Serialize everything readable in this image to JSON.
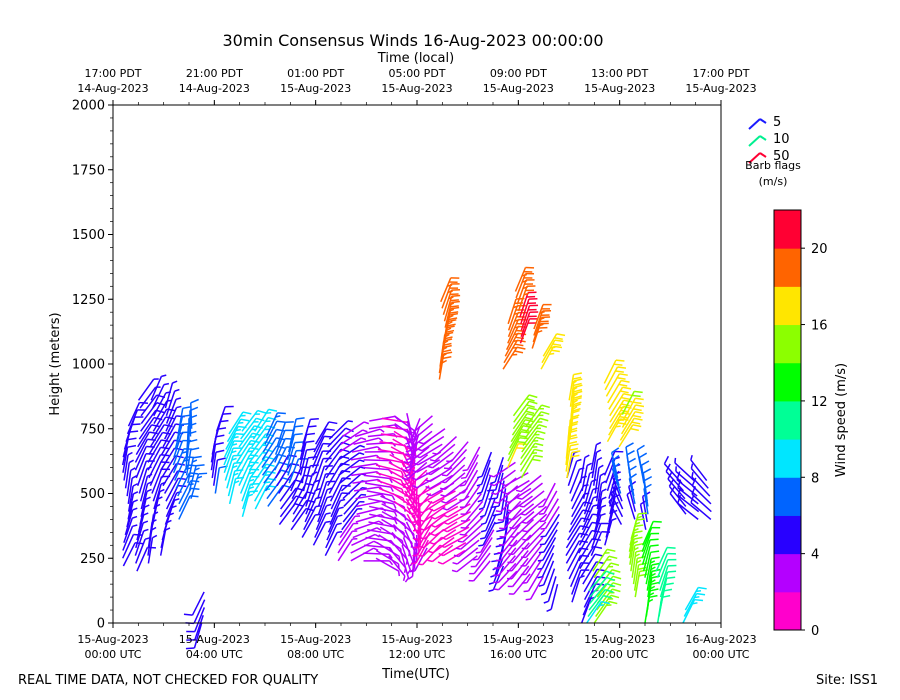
{
  "chart_data": {
    "type": "wind-barb",
    "title": "30min Consensus Winds 16-Aug-2023 00:00:00",
    "top_axis_title": "Time (local)",
    "xlabel": "Time(UTC)",
    "ylabel": "Height (meters)",
    "ylim": [
      0,
      2000
    ],
    "y_ticks": [
      0,
      250,
      500,
      750,
      1000,
      1250,
      1500,
      1750,
      2000
    ],
    "x_range_hours_utc": [
      0,
      24
    ],
    "x_ticks": [
      {
        "hour": 0,
        "line1": "15-Aug-2023",
        "line2": "00:00 UTC"
      },
      {
        "hour": 4,
        "line1": "15-Aug-2023",
        "line2": "04:00 UTC"
      },
      {
        "hour": 8,
        "line1": "15-Aug-2023",
        "line2": "08:00 UTC"
      },
      {
        "hour": 12,
        "line1": "15-Aug-2023",
        "line2": "12:00 UTC"
      },
      {
        "hour": 16,
        "line1": "15-Aug-2023",
        "line2": "16:00 UTC"
      },
      {
        "hour": 20,
        "line1": "15-Aug-2023",
        "line2": "20:00 UTC"
      },
      {
        "hour": 24,
        "line1": "16-Aug-2023",
        "line2": "00:00 UTC"
      }
    ],
    "top_ticks": [
      {
        "hour": 0,
        "line1": "17:00 PDT",
        "line2": "14-Aug-2023"
      },
      {
        "hour": 4,
        "line1": "21:00 PDT",
        "line2": "14-Aug-2023"
      },
      {
        "hour": 8,
        "line1": "01:00 PDT",
        "line2": "15-Aug-2023"
      },
      {
        "hour": 12,
        "line1": "05:00 PDT",
        "line2": "15-Aug-2023"
      },
      {
        "hour": 16,
        "line1": "09:00 PDT",
        "line2": "15-Aug-2023"
      },
      {
        "hour": 20,
        "line1": "13:00 PDT",
        "line2": "15-Aug-2023"
      },
      {
        "hour": 24,
        "line1": "17:00 PDT",
        "line2": "15-Aug-2023"
      }
    ],
    "barb_legend": {
      "entries": [
        {
          "label": "5",
          "color": "#1a1aff"
        },
        {
          "label": "10",
          "color": "#00f090"
        },
        {
          "label": "50",
          "color": "#ff0033"
        }
      ],
      "title_line1": "Barb flags",
      "title_line2": "(m/s)"
    },
    "colorbar": {
      "label": "Wind speed (m/s)",
      "min": 0,
      "max": 22,
      "tick_values": [
        0,
        4,
        8,
        12,
        16,
        20
      ],
      "tick_labels": [
        "0",
        "4",
        "8",
        "12",
        "16",
        "20"
      ],
      "colors": [
        "#ff00cc",
        "#b400ff",
        "#2800ff",
        "#0064ff",
        "#00e6ff",
        "#00ff96",
        "#00ff00",
        "#8cff00",
        "#ffe600",
        "#ff6400",
        "#ff0033"
      ]
    },
    "columns": [
      {
        "t": 0.5,
        "hmin": 220,
        "hmax": 780,
        "speed": 5,
        "dir": 20
      },
      {
        "t": 1.0,
        "hmin": 200,
        "hmax": 860,
        "speed": 5,
        "dir": 25
      },
      {
        "t": 1.5,
        "hmin": 230,
        "hmax": 880,
        "speed": 5,
        "dir": 20
      },
      {
        "t": 2.0,
        "hmin": 260,
        "hmax": 840,
        "speed": 5,
        "dir": 20
      },
      {
        "t": 2.5,
        "hmin": 400,
        "hmax": 750,
        "speed": 7,
        "dir": 15
      },
      {
        "t": 3.0,
        "hmin": 480,
        "hmax": 760,
        "speed": 7,
        "dir": 10
      },
      {
        "t": 3.5,
        "hmin": 0,
        "hmax": 120,
        "speed": 6,
        "dir": 200
      },
      {
        "t": 4.0,
        "hmin": 500,
        "hmax": 740,
        "speed": 6,
        "dir": 20
      },
      {
        "t": 4.5,
        "hmin": 460,
        "hmax": 740,
        "speed": 9,
        "dir": 25
      },
      {
        "t": 5.0,
        "hmin": 410,
        "hmax": 740,
        "speed": 9,
        "dir": 25
      },
      {
        "t": 5.5,
        "hmin": 440,
        "hmax": 740,
        "speed": 9,
        "dir": 25
      },
      {
        "t": 6.0,
        "hmin": 450,
        "hmax": 720,
        "speed": 7,
        "dir": 25
      },
      {
        "t": 6.5,
        "hmin": 380,
        "hmax": 700,
        "speed": 6,
        "dir": 25
      },
      {
        "t": 7.0,
        "hmin": 360,
        "hmax": 700,
        "speed": 6,
        "dir": 25
      },
      {
        "t": 7.5,
        "hmin": 330,
        "hmax": 700,
        "speed": 5,
        "dir": 25
      },
      {
        "t": 8.0,
        "hmin": 300,
        "hmax": 700,
        "speed": 5,
        "dir": 30
      },
      {
        "t": 8.5,
        "hmin": 260,
        "hmax": 710,
        "speed": 5,
        "dir": 35
      },
      {
        "t": 9.0,
        "hmin": 240,
        "hmax": 720,
        "speed": 4,
        "dir": 45
      },
      {
        "t": 9.5,
        "hmin": 240,
        "hmax": 740,
        "speed": 3,
        "dir": 70
      },
      {
        "t": 10.0,
        "hmin": 240,
        "hmax": 780,
        "speed": 3,
        "dir": 90
      },
      {
        "t": 10.5,
        "hmin": 250,
        "hmax": 790,
        "speed": 2,
        "dir": 110
      },
      {
        "t": 11.0,
        "hmin": 260,
        "hmax": 800,
        "speed": 2,
        "dir": 130
      },
      {
        "t": 11.5,
        "hmin": 270,
        "hmax": 810,
        "speed": 2,
        "dir": 160
      },
      {
        "t": 12.0,
        "hmin": 280,
        "hmax": 810,
        "speed": 2,
        "dir": 190
      },
      {
        "t": 12.5,
        "hmin": 290,
        "hmax": 800,
        "speed": 2,
        "dir": 220
      },
      {
        "t": 13.0,
        "hmin": 300,
        "hmax": 760,
        "speed": 2,
        "dir": 230
      },
      {
        "t": 13.5,
        "hmin": 300,
        "hmax": 740,
        "speed": 2,
        "dir": 230
      },
      {
        "t": 14.0,
        "hmin": 280,
        "hmax": 700,
        "speed": 2,
        "dir": 230
      },
      {
        "t": 14.5,
        "hmin": 260,
        "hmax": 680,
        "speed": 3,
        "dir": 220
      },
      {
        "t": 15.0,
        "hmin": 240,
        "hmax": 660,
        "speed": 4,
        "dir": 210
      },
      {
        "t": 15.5,
        "hmin": 220,
        "hmax": 640,
        "speed": 5,
        "dir": 200
      },
      {
        "t": 16.0,
        "hmin": 200,
        "hmax": 620,
        "speed": 3,
        "dir": 230
      },
      {
        "t": 16.5,
        "hmin": 190,
        "hmax": 600,
        "speed": 3,
        "dir": 230
      },
      {
        "t": 17.0,
        "hmin": 180,
        "hmax": 580,
        "speed": 3,
        "dir": 220
      },
      {
        "t": 17.5,
        "hmin": 150,
        "hmax": 560,
        "speed": 4,
        "dir": 200
      },
      {
        "t": 18.0,
        "hmin": 80,
        "hmax": 560,
        "speed": 5,
        "dir": 20
      },
      {
        "t": 18.5,
        "hmin": 0,
        "hmax": 540,
        "speed": 5,
        "dir": 20
      },
      {
        "t": 19.0,
        "hmin": 260,
        "hmax": 600,
        "speed": 5,
        "dir": 20
      },
      {
        "t": 19.5,
        "hmin": 300,
        "hmax": 580,
        "speed": 5,
        "dir": 25
      },
      {
        "t": 20.0,
        "hmin": 380,
        "hmax": 560,
        "speed": 6,
        "dir": 340
      },
      {
        "t": 20.5,
        "hmin": 400,
        "hmax": 600,
        "speed": 6,
        "dir": 340
      },
      {
        "t": 21.0,
        "hmin": 360,
        "hmax": 580,
        "speed": 6,
        "dir": 340
      },
      {
        "t": 22.5,
        "hmin": 420,
        "hmax": 560,
        "speed": 5,
        "dir": 330
      },
      {
        "t": 23.0,
        "hmin": 400,
        "hmax": 560,
        "speed": 5,
        "dir": 320
      },
      {
        "t": 23.5,
        "hmin": 400,
        "hmax": 560,
        "speed": 5,
        "dir": 320
      }
    ],
    "upper_barbs": [
      {
        "t": 13.0,
        "hmin": 940,
        "hmax": 1250,
        "speed": 19,
        "dir": 20
      },
      {
        "t": 15.5,
        "hmin": 980,
        "hmax": 1170,
        "speed": 19,
        "dir": 25
      },
      {
        "t": 16.0,
        "hmin": 1080,
        "hmax": 1290,
        "speed": 20,
        "dir": 30
      },
      {
        "t": 16.5,
        "hmin": 1060,
        "hmax": 1150,
        "speed": 19,
        "dir": 30
      },
      {
        "t": 17.0,
        "hmin": 980,
        "hmax": 1030,
        "speed": 17,
        "dir": 40
      },
      {
        "t": 15.7,
        "hmin": 600,
        "hmax": 820,
        "speed": 16,
        "dir": 25
      },
      {
        "t": 16.2,
        "hmin": 560,
        "hmax": 780,
        "speed": 15,
        "dir": 25
      },
      {
        "t": 18.0,
        "hmin": 560,
        "hmax": 860,
        "speed": 17,
        "dir": 15
      },
      {
        "t": 19.5,
        "hmin": 700,
        "hmax": 930,
        "speed": 17,
        "dir": 20
      },
      {
        "t": 20.0,
        "hmin": 680,
        "hmax": 820,
        "speed": 16,
        "dir": 20
      },
      {
        "t": 20.5,
        "hmin": 100,
        "hmax": 340,
        "speed": 15,
        "dir": 20
      },
      {
        "t": 21.0,
        "hmin": 0,
        "hmax": 300,
        "speed": 13,
        "dir": 20
      },
      {
        "t": 21.5,
        "hmin": 0,
        "hmax": 200,
        "speed": 11,
        "dir": 20
      },
      {
        "t": 19.0,
        "hmin": 0,
        "hmax": 200,
        "speed": 14,
        "dir": 25
      },
      {
        "t": 18.7,
        "hmin": 0,
        "hmax": 140,
        "speed": 10,
        "dir": 30
      },
      {
        "t": 22.5,
        "hmin": 0,
        "hmax": 50,
        "speed": 10,
        "dir": 20
      }
    ]
  },
  "footer": {
    "left": "REAL TIME DATA, NOT CHECKED FOR QUALITY",
    "right": "Site: ISS1"
  }
}
